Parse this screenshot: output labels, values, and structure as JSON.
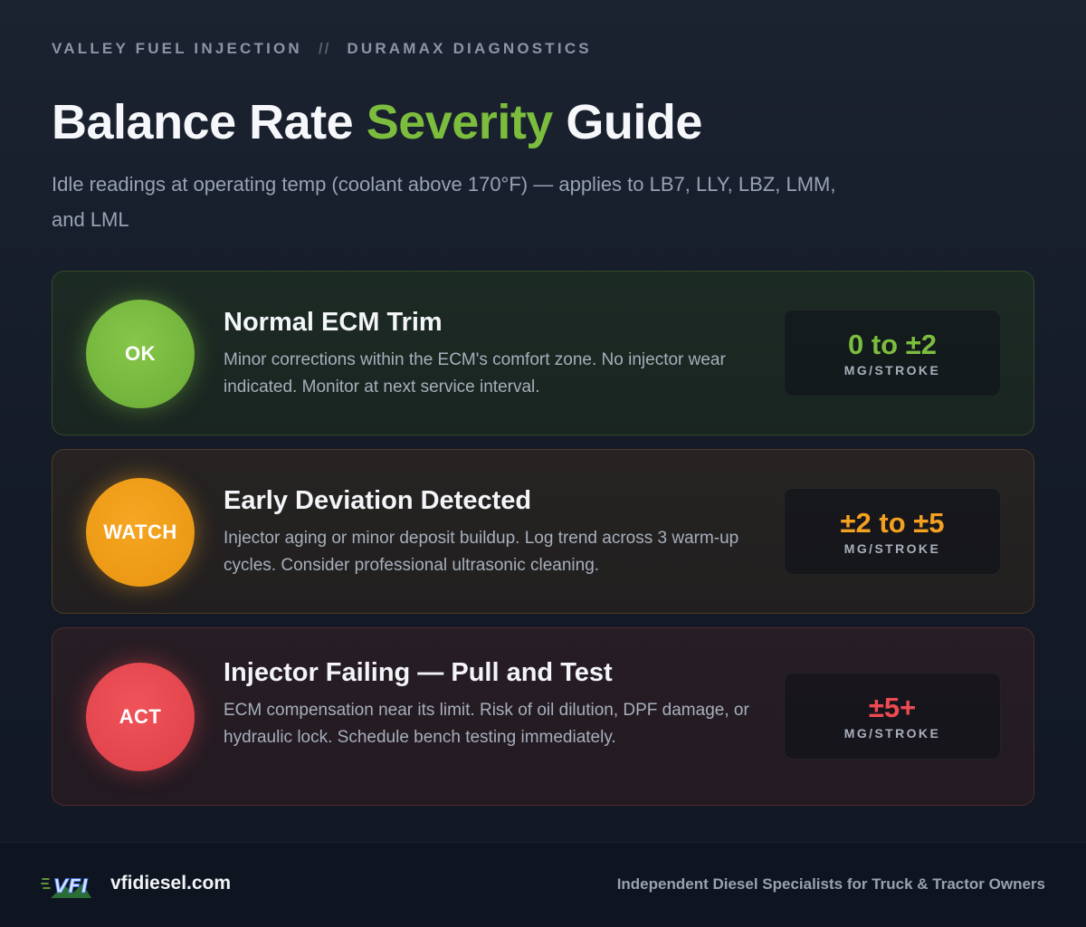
{
  "header": {
    "brand": "VALLEY FUEL INJECTION",
    "separator": "//",
    "section": "DURAMAX DIAGNOSTICS",
    "title_part1": "Balance Rate",
    "title_accent": "Severity",
    "title_part2": "Guide",
    "subtitle": "Idle readings at operating temp (coolant above 170°F) — applies to LB7, LLY, LBZ, LMM, and LML"
  },
  "cards": [
    {
      "badge": "OK",
      "title": "Normal ECM Trim",
      "description": "Minor corrections within the ECM's comfort zone. No injector wear indicated. Monitor at next service interval.",
      "range": "0 to ±2",
      "unit": "MG/STROKE",
      "color": "#7cbd3e"
    },
    {
      "badge": "WATCH",
      "title": "Early Deviation Detected",
      "description": "Injector aging or minor deposit buildup. Log trend across 3 warm-up cycles. Consider professional ultrasonic cleaning.",
      "range": "±2 to ±5",
      "unit": "MG/STROKE",
      "color": "#f4a021"
    },
    {
      "badge": "ACT",
      "title": "Injector Failing — Pull and Test",
      "description": "ECM compensation near its limit. Risk of oil dilution, DPF damage, or hydraulic lock. Schedule bench testing immediately.",
      "range": "±5+",
      "unit": "MG/STROKE",
      "color": "#ee4a52"
    }
  ],
  "footer": {
    "logo_text": "VFI",
    "logo_icon": "vfi-logo-icon",
    "domain": "vfidiesel.com",
    "tagline": "Independent Diesel Specialists for Truck & Tractor Owners"
  }
}
